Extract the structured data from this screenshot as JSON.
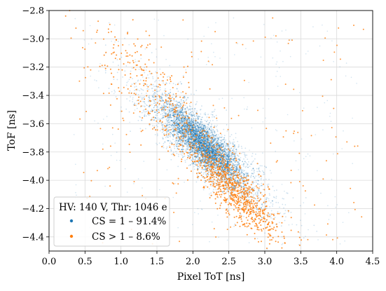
{
  "chart_data": {
    "type": "scatter",
    "xlabel": "Pixel ToT [ns]",
    "ylabel": "ToF [ns]",
    "xlim": [
      0.0,
      4.5
    ],
    "ylim": [
      -4.5,
      -2.8
    ],
    "x_ticks": [
      "0.0",
      "0.5",
      "1.0",
      "1.5",
      "2.0",
      "2.5",
      "3.0",
      "3.5",
      "4.0",
      "4.5"
    ],
    "y_ticks": [
      "−2.8",
      "−3.0",
      "−3.2",
      "−3.4",
      "−3.6",
      "−3.8",
      "−4.0",
      "−4.2",
      "−4.4"
    ],
    "grid": true,
    "legend": {
      "placement": "lower-left",
      "title": "HV: 140 V, Thr: 1046 e",
      "entries": [
        "CS = 1 – 91.4%",
        "CS > 1 – 8.6%"
      ]
    },
    "series": [
      {
        "name": "CS = 1 – 91.4%",
        "color": "#1f77b4",
        "share_percent": 91.4,
        "cluster": {
          "x_range": [
            0.3,
            4.3
          ],
          "y_range": [
            -4.45,
            -2.85
          ],
          "dense_core": {
            "x_mean": 2.15,
            "y_mean": -3.75
          },
          "trend": "ToF decreases as ToT increases"
        }
      },
      {
        "name": "CS > 1 – 8.6%",
        "color": "#ff7f0e",
        "share_percent": 8.6,
        "cluster": {
          "x_range": [
            0.4,
            4.4
          ],
          "y_range": [
            -4.45,
            -2.85
          ],
          "dense_core": {
            "x_mean": 2.55,
            "y_mean": -4.05
          },
          "trend": "ToF decreases as ToT increases"
        }
      }
    ]
  }
}
